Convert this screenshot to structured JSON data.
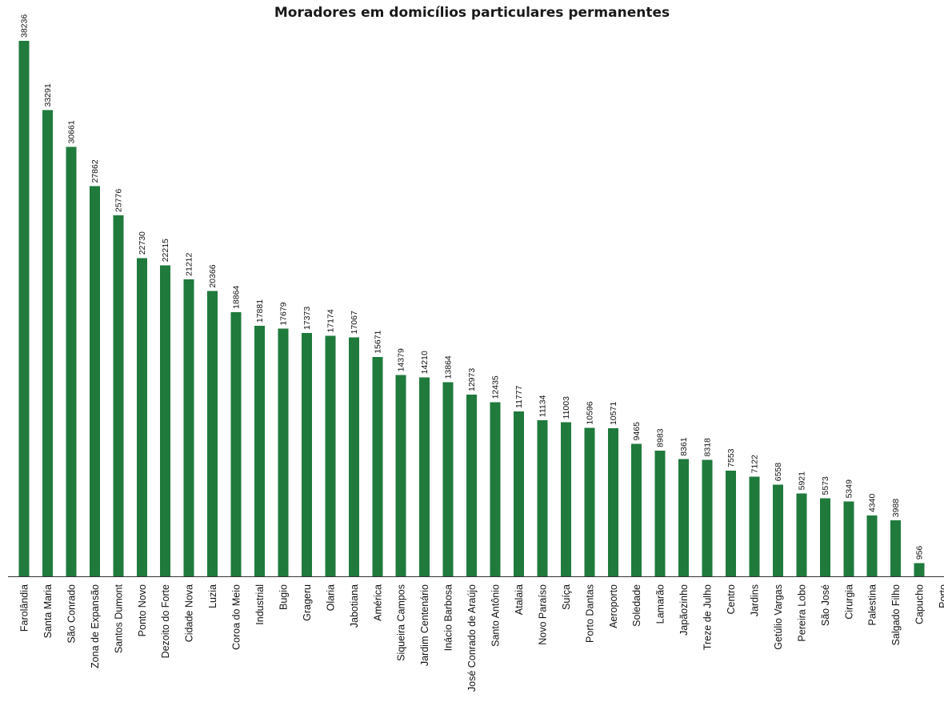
{
  "chart_data": {
    "type": "bar",
    "title": "Moradores em domicílios particulares permanentes",
    "xlabel": "",
    "ylabel": "",
    "bar_color": "#1f7a3c",
    "axis_color": "#333333",
    "grid": false,
    "ylim": [
      0,
      38236
    ],
    "categories": [
      "Farolândia",
      "Santa Maria",
      "São Conrado",
      "Zona de Expansão",
      "Santos Dumont",
      "Ponto Novo",
      "Dezoito do Forte",
      "Cidade Nova",
      "Luzia",
      "Coroa do Meio",
      "Industrial",
      "Bugio",
      "Grageru",
      "Olaria",
      "Jabotiana",
      "América",
      "Siqueira Campos",
      "Jardim Centenário",
      "Inácio Barbosa",
      "José Conrado de Araújo",
      "Santo Antônio",
      "Atalaia",
      "Novo Paraíso",
      "Suíça",
      "Porto Dantas",
      "Aeroporto",
      "Soledade",
      "Lamarão",
      "Japãozinho",
      "Treze de Julho",
      "Centro",
      "Jardins",
      "Getúlio Vargas",
      "Pereira Lobo",
      "São José",
      "Cirurgia",
      "Palestina",
      "Salgado Filho",
      "Capucho",
      "Porto"
    ],
    "values": [
      38236,
      33291,
      30661,
      27862,
      25776,
      22730,
      22215,
      21212,
      20366,
      18864,
      17881,
      17679,
      17373,
      17174,
      17067,
      15671,
      14379,
      14210,
      13864,
      12973,
      12435,
      11777,
      11134,
      11003,
      10596,
      10571,
      9465,
      8983,
      8361,
      8318,
      7553,
      7122,
      6558,
      5921,
      5573,
      5349,
      4340,
      3988,
      956,
      null
    ],
    "value_labels": [
      "38236",
      "33291",
      "30661",
      "27862",
      "25776",
      "22730",
      "22215",
      "21212",
      "20366",
      "18864",
      "17881",
      "17679",
      "17373",
      "17174",
      "17067",
      "15671",
      "14379",
      "14210",
      "13864",
      "12973",
      "12435",
      "11777",
      "11134",
      "11003",
      "10596",
      "10571",
      "9465",
      "8983",
      "8361",
      "8318",
      "7553",
      "7122",
      "6558",
      "5921",
      "5573",
      "5349",
      "4340",
      "3988",
      "956",
      ""
    ]
  }
}
